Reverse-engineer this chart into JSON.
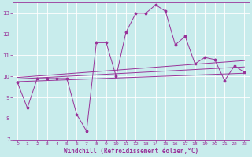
{
  "title": "",
  "xlabel": "Windchill (Refroidissement éolien,°C)",
  "ylabel": "",
  "background_color": "#c8ecec",
  "grid_color": "#ffffff",
  "line_color": "#993399",
  "xlim": [
    -0.5,
    23.5
  ],
  "ylim": [
    7,
    13.5
  ],
  "yticks": [
    7,
    8,
    9,
    10,
    11,
    12,
    13
  ],
  "xticks": [
    0,
    1,
    2,
    3,
    4,
    5,
    6,
    7,
    8,
    9,
    10,
    11,
    12,
    13,
    14,
    15,
    16,
    17,
    18,
    19,
    20,
    21,
    22,
    23
  ],
  "main_line_x": [
    0,
    1,
    2,
    3,
    4,
    5,
    6,
    7,
    8,
    9,
    10,
    11,
    12,
    13,
    14,
    15,
    16,
    17,
    18,
    19,
    20,
    21,
    22,
    23
  ],
  "main_line_y": [
    9.7,
    8.5,
    9.9,
    9.9,
    9.9,
    9.9,
    8.2,
    7.4,
    11.6,
    11.6,
    10.0,
    12.1,
    13.0,
    13.0,
    13.4,
    13.1,
    11.5,
    11.9,
    10.6,
    10.9,
    10.8,
    9.8,
    10.5,
    10.2
  ],
  "reg_line1_x": [
    0,
    23
  ],
  "reg_line1_y": [
    9.75,
    10.15
  ],
  "reg_line2_x": [
    0,
    23
  ],
  "reg_line2_y": [
    9.88,
    10.45
  ],
  "reg_line3_x": [
    0,
    23
  ],
  "reg_line3_y": [
    9.95,
    10.75
  ],
  "tick_fontsize": 4.5,
  "xlabel_fontsize": 5.5,
  "spine_color": "#993399",
  "marker": "*",
  "markersize": 2.5,
  "linewidth": 0.7
}
